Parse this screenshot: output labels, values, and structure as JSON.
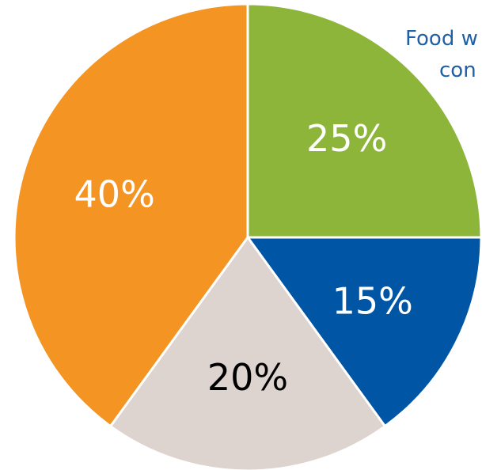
{
  "chart_data": {
    "type": "pie",
    "start_angle_deg": 0,
    "direction": "clockwise",
    "slices": [
      {
        "label": "25%",
        "value": 25,
        "color": "#8db53a",
        "label_color": "#ffffff"
      },
      {
        "label": "15%",
        "value": 15,
        "color": "#0055a4",
        "label_color": "#ffffff"
      },
      {
        "label": "20%",
        "value": 20,
        "color": "#ddd3cf",
        "label_color": "#000000"
      },
      {
        "label": "40%",
        "value": 40,
        "color": "#f49422",
        "label_color": "#ffffff"
      }
    ],
    "annotation": {
      "line1": "Food w",
      "line2": "con"
    }
  }
}
